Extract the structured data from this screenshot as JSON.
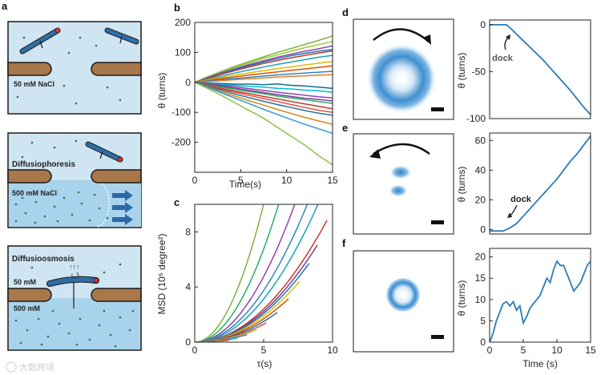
{
  "panels": {
    "a": {
      "letter": "a",
      "sub1": {
        "salt_label": "50 mM NaCl"
      },
      "sub2": {
        "title": "Diffusiophoresis",
        "salt_label": "500 mM NaCl"
      },
      "sub3": {
        "title": "Diffusioosmosis",
        "top_label": "50 mM",
        "bottom_label": "500 mM"
      },
      "colors": {
        "water": "#cfe5f2",
        "salty": "#a9d3ec",
        "membrane": "#a8774a",
        "rod": "#2f6ea5",
        "tip": "#d33",
        "dot": "#1f7a4e",
        "arrow": "#2b6aa3"
      }
    },
    "b": {
      "letter": "b"
    },
    "c": {
      "letter": "c"
    },
    "d": {
      "letter": "d",
      "annotation": "dock"
    },
    "e": {
      "letter": "e",
      "annotation": "dock"
    },
    "f": {
      "letter": "f"
    }
  },
  "watermark": "大数跨境",
  "chart_data": [
    {
      "id": "b",
      "type": "line",
      "title": "",
      "xlabel": "Time(s)",
      "ylabel": "θ (turns)",
      "xlim": [
        0,
        15
      ],
      "ylim": [
        -300,
        200
      ],
      "xticks": [
        0,
        5,
        10,
        15
      ],
      "yticks": [
        -200,
        -100,
        0,
        100,
        200
      ],
      "x": [
        0,
        1.5,
        3,
        4.5,
        6,
        7.5,
        9,
        10.5,
        12,
        13.5,
        15
      ],
      "series": [
        {
          "name": "s1",
          "color": "#7cb342",
          "values": [
            0,
            20,
            38,
            55,
            70,
            85,
            100,
            113,
            127,
            140,
            155
          ]
        },
        {
          "name": "s2",
          "color": "#9acd32",
          "values": [
            0,
            19,
            36,
            52,
            65,
            80,
            92,
            104,
            116,
            126,
            136
          ]
        },
        {
          "name": "s3",
          "color": "#8e44ad",
          "values": [
            0,
            17,
            33,
            47,
            60,
            72,
            84,
            94,
            104,
            112,
            122
          ]
        },
        {
          "name": "s4",
          "color": "#1f77b4",
          "values": [
            0,
            15,
            30,
            44,
            56,
            68,
            79,
            89,
            97,
            104,
            110
          ]
        },
        {
          "name": "s5",
          "color": "#c0392b",
          "values": [
            0,
            14,
            28,
            40,
            52,
            63,
            73,
            82,
            90,
            98,
            105
          ]
        },
        {
          "name": "s6",
          "color": "#17a2b8",
          "values": [
            0,
            11,
            22,
            32,
            42,
            51,
            60,
            68,
            76,
            84,
            90
          ]
        },
        {
          "name": "s7",
          "color": "#e6b800",
          "values": [
            0,
            9,
            17,
            25,
            32,
            39,
            46,
            52,
            58,
            64,
            70
          ]
        },
        {
          "name": "s8",
          "color": "#d35400",
          "values": [
            0,
            7,
            13,
            19,
            25,
            30,
            35,
            40,
            45,
            50,
            55
          ]
        },
        {
          "name": "s9",
          "color": "#2e86c1",
          "values": [
            0,
            5,
            9,
            13,
            17,
            21,
            25,
            28,
            31,
            34,
            37
          ]
        },
        {
          "name": "s10",
          "color": "#e67e22",
          "values": [
            0,
            3,
            6,
            9,
            12,
            15,
            18,
            20,
            22,
            24,
            26
          ]
        },
        {
          "name": "s11",
          "color": "#0f6e8c",
          "values": [
            0,
            -2,
            -4,
            -6,
            -6,
            -8,
            -5,
            -10,
            -12,
            -16,
            -20
          ]
        },
        {
          "name": "s12",
          "color": "#00bcd4",
          "values": [
            0,
            -4,
            -7,
            -10,
            -13,
            -16,
            -20,
            -22,
            -26,
            -28,
            -33
          ]
        },
        {
          "name": "s13",
          "color": "#8e44ad",
          "values": [
            0,
            -5,
            -10,
            -15,
            -21,
            -27,
            -33,
            -38,
            -43,
            -48,
            -52
          ]
        },
        {
          "name": "s14",
          "color": "#7d3c98",
          "values": [
            0,
            -7,
            -13,
            -20,
            -27,
            -34,
            -41,
            -47,
            -53,
            -57,
            -62
          ]
        },
        {
          "name": "s15",
          "color": "#27ae60",
          "values": [
            0,
            -8,
            -16,
            -24,
            -31,
            -38,
            -46,
            -52,
            -58,
            -64,
            -70
          ]
        },
        {
          "name": "s16",
          "color": "#c0392b",
          "values": [
            0,
            -10,
            -20,
            -30,
            -38,
            -47,
            -55,
            -64,
            -72,
            -80,
            -88
          ]
        },
        {
          "name": "s17",
          "color": "#e74c3c",
          "values": [
            0,
            -12,
            -23,
            -34,
            -44,
            -54,
            -64,
            -74,
            -84,
            -93,
            -100
          ]
        },
        {
          "name": "s18",
          "color": "#2471a3",
          "values": [
            0,
            -14,
            -27,
            -40,
            -52,
            -63,
            -74,
            -84,
            -94,
            -103,
            -110
          ]
        },
        {
          "name": "s19",
          "color": "#d68910",
          "values": [
            0,
            -16,
            -32,
            -47,
            -62,
            -76,
            -90,
            -104,
            -117,
            -129,
            -140
          ]
        },
        {
          "name": "s20",
          "color": "#3498db",
          "values": [
            0,
            -18,
            -36,
            -54,
            -72,
            -90,
            -107,
            -124,
            -140,
            -155,
            -170
          ]
        },
        {
          "name": "s21",
          "color": "#8bc34a",
          "values": [
            0,
            -22,
            -45,
            -70,
            -95,
            -120,
            -150,
            -180,
            -210,
            -245,
            -275
          ]
        }
      ]
    },
    {
      "id": "c",
      "type": "line",
      "xlabel": "τ(s)",
      "ylabel": "MSD (10⁵ degree²)",
      "xlim": [
        0,
        10
      ],
      "ylim": [
        0,
        10
      ],
      "xticks": [
        0,
        5,
        10
      ],
      "yticks": [
        0,
        4,
        8
      ],
      "series": [
        {
          "name": "m1",
          "color": "#7cb342",
          "end": 10.0,
          "scale": 0.4,
          "power": 2
        },
        {
          "name": "m2",
          "color": "#27ae60",
          "end": 10.0,
          "scale": 0.27,
          "power": 2
        },
        {
          "name": "m3",
          "color": "#8e44ad",
          "end": 10.0,
          "scale": 0.19,
          "power": 2
        },
        {
          "name": "m4",
          "color": "#2e86c1",
          "end": 10.0,
          "scale": 0.15,
          "power": 2
        },
        {
          "name": "m5",
          "color": "#17a2b8",
          "end": 10.0,
          "scale": 0.125,
          "power": 2
        },
        {
          "name": "m6",
          "color": "#c0392b",
          "end": 9.6,
          "scale": 0.096,
          "power": 2
        },
        {
          "name": "m7",
          "color": "#7d3c98",
          "end": 8.9,
          "scale": 0.089,
          "power": 2
        },
        {
          "name": "m8",
          "color": "#1f77b4",
          "end": 8.3,
          "scale": 0.083,
          "power": 2
        },
        {
          "name": "m9",
          "color": "#e6b800",
          "end": 7.6,
          "scale": 0.076,
          "power": 2
        },
        {
          "name": "m10",
          "color": "#d35400",
          "end": 6.8,
          "scale": 0.068,
          "power": 2
        },
        {
          "name": "m11",
          "color": "#2471a3",
          "end": 6.0,
          "scale": 0.06,
          "power": 2
        },
        {
          "name": "m12",
          "color": "#e74c3c",
          "end": 5.2,
          "scale": 0.052,
          "power": 2
        },
        {
          "name": "m13",
          "color": "#8bc34a",
          "end": 4.5,
          "scale": 0.045,
          "power": 2
        },
        {
          "name": "m14",
          "color": "#9b59b6",
          "end": 3.8,
          "scale": 0.038,
          "power": 2
        },
        {
          "name": "m15",
          "color": "#00bcd4",
          "end": 3.1,
          "scale": 0.031,
          "power": 2
        },
        {
          "name": "m16",
          "color": "#c0392b",
          "end": 2.5,
          "scale": 0.025,
          "power": 2
        },
        {
          "name": "m17",
          "color": "#d68910",
          "end": 2.0,
          "scale": 0.02,
          "power": 2
        },
        {
          "name": "m18",
          "color": "#1f77b4",
          "end": 1.5,
          "scale": 0.015,
          "power": 2
        },
        {
          "name": "m19",
          "color": "#27ae60",
          "end": 1.0,
          "scale": 0.01,
          "power": 2
        },
        {
          "name": "m20",
          "color": "#e67e22",
          "end": 0.6,
          "scale": 0.006,
          "power": 2
        },
        {
          "name": "m21",
          "color": "#3498db",
          "end": 0.3,
          "scale": 0.003,
          "power": 2
        }
      ]
    },
    {
      "id": "d",
      "type": "line",
      "xlabel": "",
      "ylabel": "θ (turns)",
      "xlim": [
        0,
        15
      ],
      "ylim": [
        -100,
        5
      ],
      "xticks": [],
      "yticks": [
        -100,
        -50,
        0
      ],
      "series": [
        {
          "name": "d",
          "color": "#2b7bba",
          "x": [
            0,
            2,
            2.5,
            3,
            4,
            5,
            6,
            7,
            8,
            9,
            10,
            11,
            12,
            13,
            14,
            15
          ],
          "values": [
            0,
            0,
            0,
            -3,
            -10,
            -17,
            -24,
            -31,
            -38,
            -46,
            -54,
            -62,
            -70,
            -79,
            -88,
            -96
          ]
        }
      ]
    },
    {
      "id": "e",
      "type": "line",
      "xlabel": "",
      "ylabel": "θ (turns)",
      "xlim": [
        0,
        15
      ],
      "ylim": [
        -3,
        65
      ],
      "xticks": [],
      "yticks": [
        0,
        20,
        40,
        60
      ],
      "series": [
        {
          "name": "e",
          "color": "#2b7bba",
          "x": [
            0,
            1,
            2,
            2.5,
            3,
            4,
            5,
            6,
            7,
            8,
            9,
            10,
            11,
            12,
            13,
            14,
            15
          ],
          "values": [
            -1,
            -1,
            -1,
            0,
            1,
            4,
            9,
            14,
            19,
            24,
            29,
            34,
            40,
            46,
            51,
            57,
            63
          ]
        }
      ]
    },
    {
      "id": "f",
      "type": "line",
      "xlabel": "Time (s)",
      "ylabel": "θ (turns)",
      "xlim": [
        0,
        15
      ],
      "ylim": [
        0,
        22
      ],
      "xticks": [
        0,
        5,
        10,
        15
      ],
      "yticks": [
        0,
        5,
        10,
        15,
        20
      ],
      "series": [
        {
          "name": "f",
          "color": "#2b7bba",
          "x": [
            0,
            0.5,
            1,
            1.5,
            2,
            2.5,
            3,
            3.5,
            4,
            4.5,
            5,
            5.5,
            6,
            6.5,
            7,
            7.5,
            8,
            8.5,
            9,
            9.5,
            10,
            10.5,
            11,
            11.5,
            12,
            12.5,
            13,
            13.5,
            14,
            14.5,
            15
          ],
          "values": [
            0,
            2,
            5,
            7,
            9,
            9.5,
            8.5,
            9.5,
            7.5,
            8.5,
            4.5,
            6,
            8,
            9,
            10,
            11,
            13,
            15,
            14,
            17,
            19,
            18,
            18,
            16,
            14,
            12,
            13,
            14,
            16,
            18,
            19
          ]
        }
      ]
    }
  ]
}
